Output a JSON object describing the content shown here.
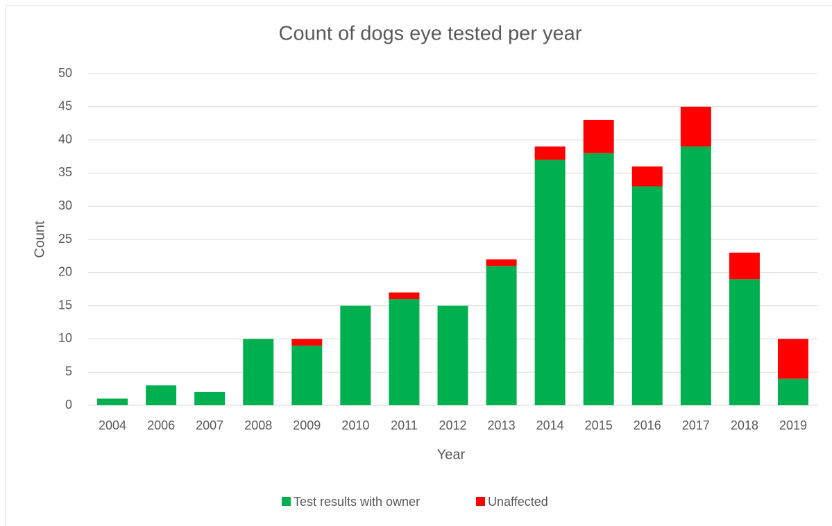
{
  "chart_data": {
    "type": "stacked_bar",
    "title": "Count of dogs eye tested per year",
    "x_label": "Year",
    "y_label": "Count",
    "categories": [
      "2004",
      "2006",
      "2007",
      "2008",
      "2009",
      "2010",
      "2011",
      "2012",
      "2013",
      "2014",
      "2015",
      "2016",
      "2017",
      "2018",
      "2019"
    ],
    "series": [
      {
        "name": "Test results with owner",
        "color": "#00b050",
        "values": [
          1,
          3,
          2,
          10,
          9,
          15,
          16,
          15,
          21,
          37,
          38,
          33,
          39,
          19,
          4
        ]
      },
      {
        "name": "Unaffected",
        "color": "#ff0000",
        "values": [
          0,
          0,
          0,
          0,
          1,
          0,
          1,
          0,
          1,
          2,
          5,
          3,
          6,
          4,
          6
        ]
      }
    ],
    "ylim": [
      0,
      50
    ],
    "yticks": [
      0,
      5,
      10,
      15,
      20,
      25,
      30,
      35,
      40,
      45,
      50
    ],
    "grid": true,
    "legend": "bottom"
  }
}
